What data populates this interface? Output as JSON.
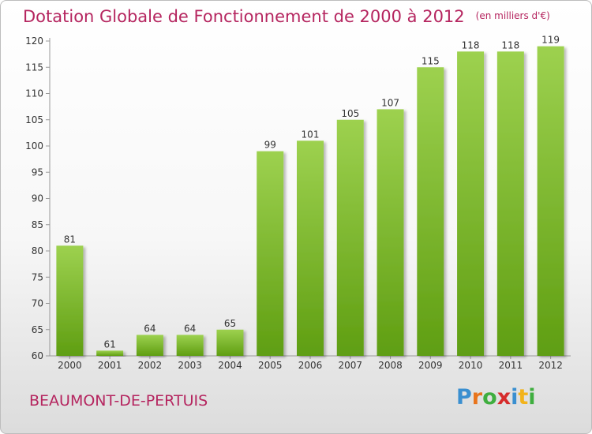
{
  "title": "Dotation Globale de Fonctionnement de 2000 à 2012",
  "unit": "(en milliers d'€)",
  "place": "BEAUMONT-DE-PERTUIS",
  "brand": {
    "text": "Proxiti",
    "letters": [
      {
        "ch": "P",
        "color": "#3a8fd0"
      },
      {
        "ch": "r",
        "color": "#e8741c"
      },
      {
        "ch": "o",
        "color": "#3fae3f"
      },
      {
        "ch": "x",
        "color": "#d62b2b"
      },
      {
        "ch": "i",
        "color": "#3a8fd0"
      },
      {
        "ch": "t",
        "color": "#f2b31b"
      },
      {
        "ch": "i",
        "color": "#3fae3f"
      }
    ]
  },
  "colors": {
    "title": "#b5255f",
    "bar_top": "#9dd14f",
    "bar_bottom": "#5f9e12"
  },
  "chart_data": {
    "type": "bar",
    "title": "Dotation Globale de Fonctionnement de 2000 à 2012",
    "subtitle": "(en milliers d'€)",
    "xlabel": "",
    "ylabel": "",
    "categories": [
      "2000",
      "2001",
      "2002",
      "2003",
      "2004",
      "2005",
      "2006",
      "2007",
      "2008",
      "2009",
      "2010",
      "2011",
      "2012"
    ],
    "values": [
      81,
      61,
      64,
      64,
      65,
      99,
      101,
      105,
      107,
      115,
      118,
      118,
      119
    ],
    "ylim": [
      60,
      120
    ],
    "yticks": [
      60,
      65,
      70,
      75,
      80,
      85,
      90,
      95,
      100,
      105,
      110,
      115,
      120
    ],
    "grid": false,
    "legend": "none"
  }
}
